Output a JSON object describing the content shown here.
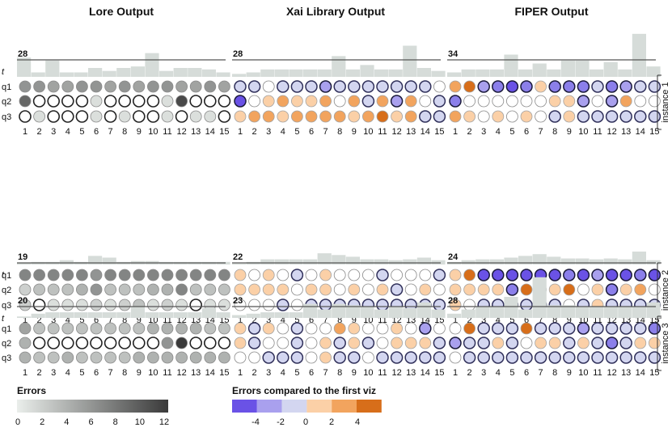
{
  "chart_data": {
    "type": "small-multiples",
    "columns": [
      {
        "title": "Lore Output",
        "scale": "errors"
      },
      {
        "title": "Xai Library Output",
        "scale": "diff"
      },
      {
        "title": "FIPER Output",
        "scale": "diff"
      }
    ],
    "row_labels": [
      "q1",
      "q2",
      "q3"
    ],
    "time_label": "t",
    "x_labels": [
      "1",
      "2",
      "3",
      "4",
      "5",
      "6",
      "7",
      "8",
      "9",
      "10",
      "11",
      "12",
      "13",
      "14",
      "15"
    ],
    "instances": [
      {
        "label": "instance 1",
        "panels": [
          {
            "threshold": 28,
            "bars": [
              1.3,
              0.3,
              1.1,
              0.3,
              0.3,
              0.6,
              0.4,
              0.6,
              0.7,
              1.6,
              0.4,
              0.6,
              0.6,
              0.5,
              0.3
            ],
            "q1": [
              6,
              6,
              5,
              5,
              6,
              6,
              5,
              6,
              5,
              6,
              6,
              5,
              5,
              6,
              5
            ],
            "q2": [
              9,
              0,
              0,
              0,
              0,
              1,
              0,
              0,
              0,
              0,
              1,
              11,
              0,
              0,
              0
            ],
            "q3": [
              0,
              1,
              0,
              0,
              0,
              1,
              0,
              1,
              0,
              0,
              1,
              0,
              1,
              1,
              0
            ]
          },
          {
            "threshold": 28,
            "bars": [
              0.2,
              0.3,
              0.5,
              0.5,
              0.5,
              0.5,
              0.5,
              1.4,
              0.5,
              0.8,
              0.5,
              0.5,
              2.1,
              0.6,
              0.4
            ],
            "q1": [
              -1,
              -1,
              0,
              -1,
              -1,
              -1,
              -2,
              -1,
              -1,
              -1,
              -1,
              -1,
              -1,
              -1,
              0
            ],
            "q2": [
              -4,
              0,
              1,
              2,
              1,
              1,
              2,
              0,
              2,
              -1,
              2,
              -2,
              2,
              0,
              -1
            ],
            "q3": [
              1,
              2,
              2,
              1,
              2,
              2,
              2,
              2,
              1,
              2,
              3,
              1,
              2,
              -1,
              -1
            ]
          },
          {
            "threshold": 34,
            "bars": [
              0.3,
              0.5,
              0.5,
              0.5,
              1.5,
              0.5,
              0.9,
              0.5,
              1.1,
              1.1,
              0.5,
              1.0,
              0.5,
              2.9,
              0.7
            ],
            "q1": [
              2,
              3,
              -2,
              -3,
              -4,
              -3,
              1,
              -3,
              -3,
              -3,
              -1,
              -3,
              -2,
              -1,
              -1
            ],
            "q2": [
              -3,
              0,
              0,
              0,
              0,
              0,
              0,
              1,
              1,
              -2,
              0,
              -2,
              2,
              0,
              0
            ],
            "q3": [
              2,
              1,
              0,
              1,
              0,
              1,
              0,
              -1,
              1,
              -1,
              -1,
              -1,
              -1,
              -1,
              -1
            ]
          }
        ]
      },
      {
        "label": "instance 2",
        "panels": [
          {
            "threshold": 19,
            "bars": [
              0.2,
              0.3,
              0.3,
              0.5,
              0.3,
              1.0,
              0.8,
              0.3,
              0.4,
              0.4,
              0.3,
              0.3,
              0.3,
              0.3,
              0.3
            ],
            "q1": [
              7,
              7,
              7,
              7,
              7,
              6,
              7,
              7,
              7,
              7,
              7,
              7,
              7,
              7,
              7
            ],
            "q2": [
              2,
              3,
              3,
              3,
              4,
              6,
              3,
              3,
              3,
              4,
              4,
              7,
              3,
              3,
              3
            ],
            "q3": [
              2,
              0,
              1,
              1,
              1,
              2,
              1,
              2,
              3,
              1,
              2,
              1,
              0,
              1,
              1
            ]
          },
          {
            "threshold": 22,
            "bars": [
              0.1,
              0.3,
              0.6,
              0.6,
              0.6,
              0.6,
              1.3,
              1.1,
              0.9,
              0.6,
              0.6,
              0.5,
              0.6,
              0.8,
              0.5
            ],
            "q1": [
              1,
              0,
              1,
              0,
              -1,
              0,
              1,
              0,
              0,
              0,
              -1,
              0,
              0,
              0,
              -1
            ],
            "q2": [
              1,
              1,
              1,
              1,
              0,
              1,
              1,
              0,
              1,
              0,
              1,
              -1,
              0,
              1,
              0
            ],
            "q3": [
              0,
              0,
              0,
              -1,
              0,
              -1,
              -1,
              -1,
              -1,
              -1,
              -1,
              -1,
              -1,
              -1,
              -1
            ]
          },
          {
            "threshold": 24,
            "bars": [
              0.3,
              0.5,
              0.6,
              0.6,
              0.8,
              1.0,
              1.2,
              0.9,
              0.7,
              0.7,
              0.6,
              0.7,
              0.6,
              1.5,
              0.5
            ],
            "q1": [
              1,
              3,
              -4,
              -4,
              -4,
              -4,
              -4,
              -4,
              -3,
              -4,
              -2,
              -4,
              -4,
              -3,
              -4
            ],
            "q2": [
              1,
              1,
              1,
              1,
              -3,
              3,
              0,
              1,
              3,
              0,
              1,
              -3,
              1,
              2,
              0
            ],
            "q3": [
              1,
              0,
              -1,
              -1,
              -1,
              -1,
              -1,
              -1,
              0,
              -1,
              1,
              -1,
              -1,
              -1,
              -1
            ]
          }
        ]
      },
      {
        "label": "instance 3",
        "panels": [
          {
            "threshold": 20,
            "bars": [
              0.1,
              0.3,
              0.4,
              0.4,
              0.4,
              0.4,
              0.4,
              0.4,
              0.8,
              0.4,
              0.4,
              0.4,
              0.4,
              0.7,
              0.4
            ],
            "q1": [
              5,
              3,
              3,
              3,
              3,
              3,
              3,
              3,
              3,
              4,
              4,
              4,
              4,
              3,
              3
            ],
            "q2": [
              4,
              0,
              0,
              0,
              0,
              0,
              0,
              0,
              0,
              0,
              6,
              12,
              0,
              0,
              0
            ],
            "q3": [
              4,
              3,
              3,
              4,
              3,
              3,
              3,
              3,
              4,
              4,
              4,
              4,
              4,
              4,
              4
            ]
          },
          {
            "threshold": 23,
            "bars": [
              0.2,
              0.3,
              0.4,
              0.4,
              0.4,
              1.0,
              0.6,
              1.0,
              0.9,
              0.8,
              0.6,
              0.8,
              0.7,
              1.1,
              0.6
            ],
            "q1": [
              1,
              -1,
              1,
              0,
              -1,
              0,
              0,
              2,
              1,
              0,
              0,
              1,
              0,
              -2,
              0
            ],
            "q2": [
              1,
              -1,
              0,
              0,
              -1,
              0,
              1,
              -1,
              1,
              -1,
              0,
              1,
              1,
              1,
              -1
            ],
            "q3": [
              0,
              0,
              -1,
              -1,
              -1,
              0,
              1,
              -1,
              -1,
              0,
              -1,
              -1,
              -1,
              -1,
              -1
            ]
          },
          {
            "threshold": 28,
            "bars": [
              0.3,
              0.6,
              0.8,
              0.8,
              1.5,
              0.6,
              2.9,
              0.9,
              0.9,
              0.8,
              0.8,
              0.8,
              0.8,
              0.8,
              1.1
            ],
            "q1": [
              0,
              3,
              -1,
              -1,
              -1,
              3,
              -1,
              -1,
              -1,
              -2,
              -1,
              -1,
              -1,
              -1,
              -3
            ],
            "q2": [
              -2,
              -1,
              -1,
              1,
              -1,
              0,
              1,
              1,
              -1,
              1,
              -1,
              -3,
              -1,
              1,
              1
            ],
            "q3": [
              0,
              -1,
              -1,
              -1,
              -1,
              -1,
              -1,
              -1,
              -1,
              -1,
              -1,
              -1,
              -1,
              -1,
              -1
            ]
          }
        ]
      }
    ],
    "legend_errors": {
      "title": "Errors",
      "ticks": [
        "0",
        "2",
        "4",
        "6",
        "8",
        "10",
        "12"
      ],
      "range": [
        0,
        12
      ]
    },
    "legend_diff": {
      "title": "Errors compared to the first viz",
      "ticks": [
        "-4",
        "-2",
        "0",
        "2",
        "4"
      ],
      "swatches": [
        "#6a52e6",
        "#a9a0ee",
        "#d3d6f0",
        "#fbd0a7",
        "#f2a45e",
        "#d76e1a"
      ]
    }
  }
}
